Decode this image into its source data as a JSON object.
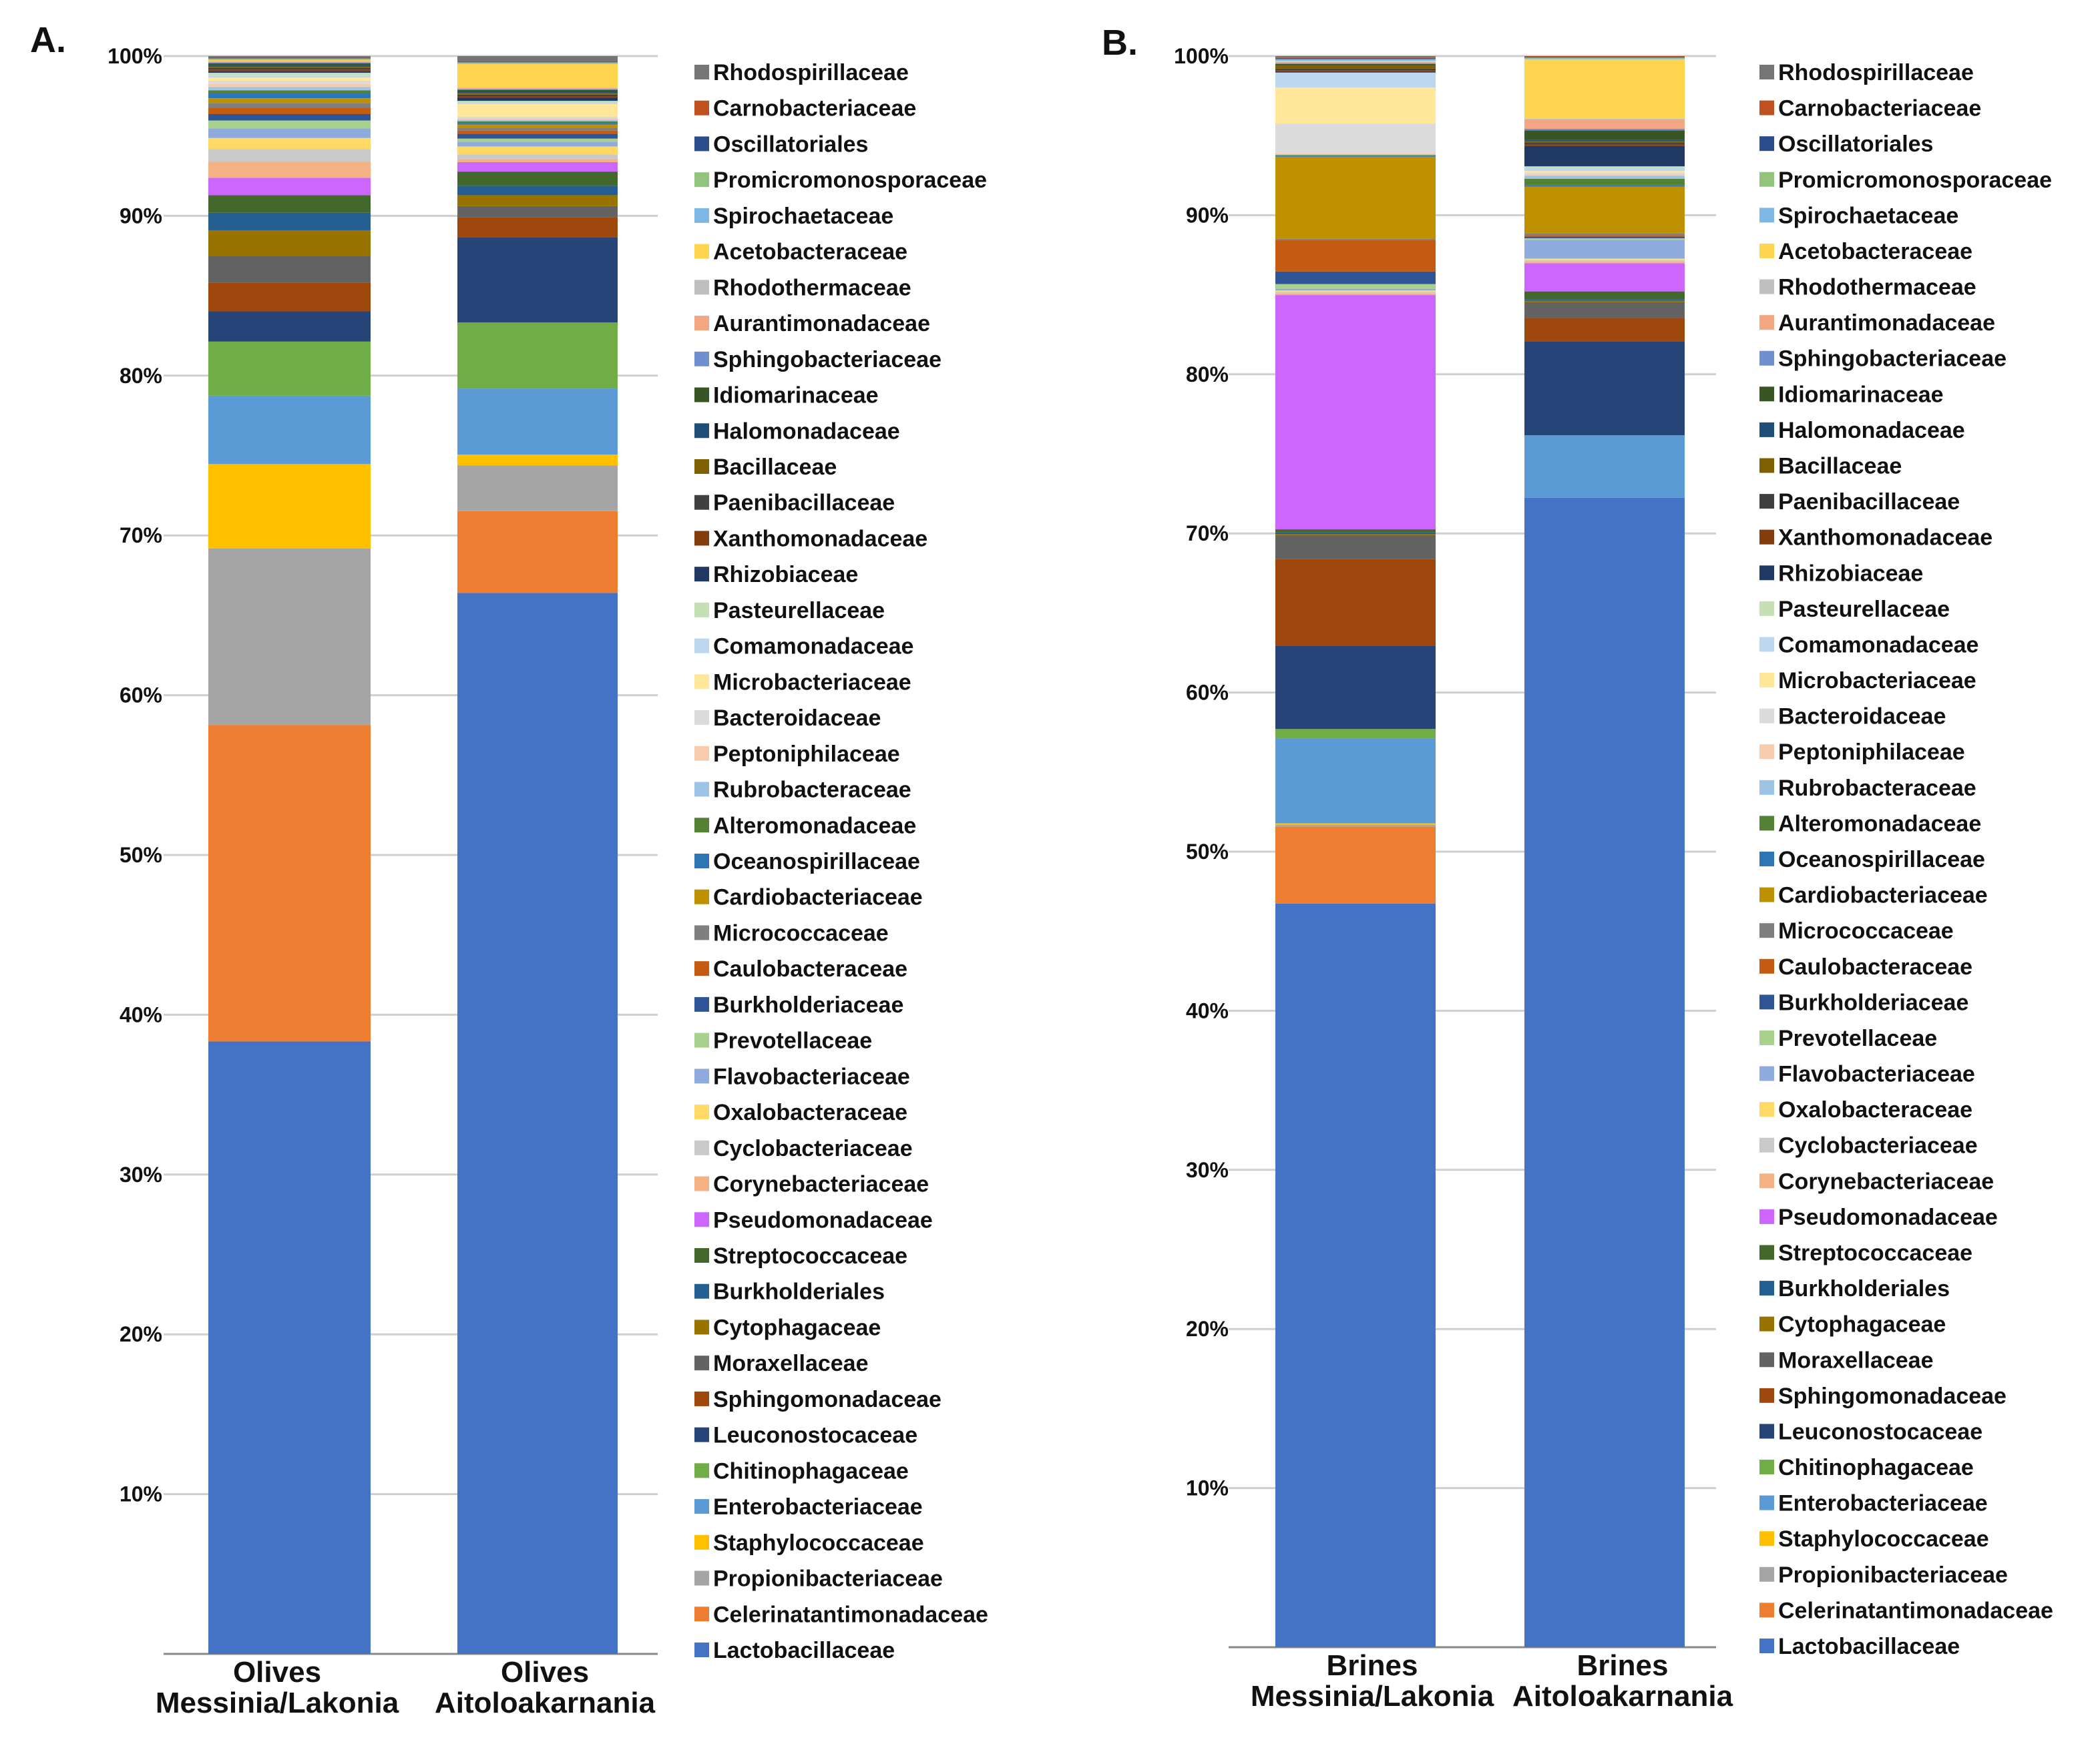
{
  "chart_data": [
    {
      "type": "bar",
      "stacked": true,
      "percent": true,
      "panel_label": "A.",
      "title": "",
      "xlabel": "",
      "ylabel": "",
      "ylim": [
        0,
        100
      ],
      "yticks": [
        "",
        "10%",
        "20%",
        "30%",
        "40%",
        "50%",
        "60%",
        "70%",
        "80%",
        "90%",
        "100%"
      ],
      "grid": true,
      "legend_position": "right",
      "categories": [
        [
          "Olives",
          "Messinia/Lakonia"
        ],
        [
          "Olives",
          "Aitoloakarnania"
        ]
      ],
      "series": [
        {
          "name": "Lactobacillaceae",
          "color": "#4472C4",
          "values": [
            38.5,
            67.5
          ]
        },
        {
          "name": "Celerinatantimonadaceae",
          "color": "#ED7D31",
          "values": [
            19.9,
            5.2
          ]
        },
        {
          "name": "Propionibacteriaceae",
          "color": "#A5A5A5",
          "values": [
            11.1,
            2.9
          ]
        },
        {
          "name": "Staphylococcaceae",
          "color": "#FFC000",
          "values": [
            5.3,
            0.7
          ]
        },
        {
          "name": "Enterobacteriaceae",
          "color": "#5B9BD5",
          "values": [
            4.3,
            4.2
          ]
        },
        {
          "name": "Chitinophagaceae",
          "color": "#70AD47",
          "values": [
            3.4,
            4.2
          ]
        },
        {
          "name": "Leuconostocaceae",
          "color": "#264478",
          "values": [
            1.9,
            5.4
          ]
        },
        {
          "name": "Sphingomonadaceae",
          "color": "#9E480E",
          "values": [
            1.8,
            1.3
          ]
        },
        {
          "name": "Moraxellaceae",
          "color": "#636363",
          "values": [
            1.7,
            0.7
          ]
        },
        {
          "name": "Cytophagaceae",
          "color": "#997300",
          "values": [
            1.6,
            0.7
          ]
        },
        {
          "name": "Burkholderiales",
          "color": "#255E91",
          "values": [
            1.1,
            0.6
          ]
        },
        {
          "name": "Streptococcaceae",
          "color": "#43682B",
          "values": [
            1.1,
            0.9
          ]
        },
        {
          "name": "Pseudomonadaceae",
          "color": "#CC66FF",
          "values": [
            1.1,
            0.6
          ]
        },
        {
          "name": "Corynebacteriaceae",
          "color": "#F4B183",
          "values": [
            1.0,
            0.2
          ]
        },
        {
          "name": "Cyclobacteriaceae",
          "color": "#C9C9C9",
          "values": [
            0.8,
            0.3
          ]
        },
        {
          "name": "Oxalobacteraceae",
          "color": "#FFD966",
          "values": [
            0.7,
            0.5
          ]
        },
        {
          "name": "Flavobacteriaceae",
          "color": "#8FAADC",
          "values": [
            0.6,
            0.3
          ]
        },
        {
          "name": "Prevotellaceae",
          "color": "#A9D18E",
          "values": [
            0.5,
            0.2
          ]
        },
        {
          "name": "Burkholderiaceae",
          "color": "#2F5597",
          "values": [
            0.4,
            0.3
          ]
        },
        {
          "name": "Caulobacteraceae",
          "color": "#C55A11",
          "values": [
            0.4,
            0.2
          ]
        },
        {
          "name": "Micrococcaceae",
          "color": "#7F7F7F",
          "values": [
            0.3,
            0.2
          ]
        },
        {
          "name": "Cardiobacteriaceae",
          "color": "#BF9000",
          "values": [
            0.3,
            0.2
          ]
        },
        {
          "name": "Oceanospirillaceae",
          "color": "#2E75B6",
          "values": [
            0.3,
            0.1
          ]
        },
        {
          "name": "Alteromonadaceae",
          "color": "#548235",
          "values": [
            0.2,
            0.1
          ]
        },
        {
          "name": "Rubrobacteraceae",
          "color": "#9DC3E6",
          "values": [
            0.2,
            0.1
          ]
        },
        {
          "name": "Peptoniphilaceae",
          "color": "#F8CBAD",
          "values": [
            0.2,
            0.1
          ]
        },
        {
          "name": "Bacteroidaceae",
          "color": "#DBDBDB",
          "values": [
            0.2,
            0.1
          ]
        },
        {
          "name": "Microbacteriaceae",
          "color": "#FFE699",
          "values": [
            0.2,
            0.8
          ]
        },
        {
          "name": "Comamonadaceae",
          "color": "#BDD7EE",
          "values": [
            0.15,
            0.1
          ]
        },
        {
          "name": "Pasteurellaceae",
          "color": "#C5E0B4",
          "values": [
            0.15,
            0.1
          ]
        },
        {
          "name": "Rhizobiaceae",
          "color": "#203864",
          "values": [
            0.1,
            0.2
          ]
        },
        {
          "name": "Xanthomonadaceae",
          "color": "#843C0C",
          "values": [
            0.1,
            0.1
          ]
        },
        {
          "name": "Paenibacillaceae",
          "color": "#404040",
          "values": [
            0.1,
            0.1
          ]
        },
        {
          "name": "Bacillaceae",
          "color": "#7F6000",
          "values": [
            0.1,
            0.1
          ]
        },
        {
          "name": "Halomonadaceae",
          "color": "#1F4E79",
          "values": [
            0.1,
            0.1
          ]
        },
        {
          "name": "Idiomarinaceae",
          "color": "#375623",
          "values": [
            0.1,
            0.1
          ]
        },
        {
          "name": "Sphingobacteriaceae",
          "color": "#6F8FD0",
          "values": [
            0.05,
            0.05
          ]
        },
        {
          "name": "Aurantimonadaceae",
          "color": "#F4A582",
          "values": [
            0.05,
            0.05
          ]
        },
        {
          "name": "Rhodothermaceae",
          "color": "#BFBFBF",
          "values": [
            0.05,
            0.05
          ]
        },
        {
          "name": "Acetobacteraceae",
          "color": "#FFD54F",
          "values": [
            0.05,
            1.5
          ]
        },
        {
          "name": "Spirochaetaceae",
          "color": "#7EB6E6",
          "values": [
            0.05,
            0.05
          ]
        },
        {
          "name": "Promicromonosporaceae",
          "color": "#93C47D",
          "values": [
            0.05,
            0.05
          ]
        },
        {
          "name": "Oscillatoriales",
          "color": "#2B4C8C",
          "values": [
            0.05,
            0.05
          ]
        },
        {
          "name": "Carnobacteriaceae",
          "color": "#C0501E",
          "values": [
            0.05,
            0.05
          ]
        },
        {
          "name": "Rhodospirillaceae",
          "color": "#757575",
          "values": [
            0.05,
            0.3
          ]
        }
      ]
    },
    {
      "type": "bar",
      "stacked": true,
      "percent": true,
      "panel_label": "B.",
      "title": "",
      "xlabel": "",
      "ylabel": "",
      "ylim": [
        0,
        100
      ],
      "yticks": [
        "",
        "10%",
        "20%",
        "30%",
        "40%",
        "50%",
        "60%",
        "70%",
        "80%",
        "90%",
        "100%"
      ],
      "grid": true,
      "legend_position": "right",
      "categories": [
        [
          "Brines",
          "Messinia/Lakonia"
        ],
        [
          "Brines",
          "Aitoloakarnania"
        ]
      ],
      "series": [
        {
          "name": "Lactobacillaceae",
          "color": "#4472C4",
          "values": [
            47.3,
            73.5
          ]
        },
        {
          "name": "Celerinatantimonadaceae",
          "color": "#ED7D31",
          "values": [
            4.9,
            0.0
          ]
        },
        {
          "name": "Propionibacteriaceae",
          "color": "#A5A5A5",
          "values": [
            0.1,
            0.0
          ]
        },
        {
          "name": "Staphylococcaceae",
          "color": "#FFC000",
          "values": [
            0.1,
            0.0
          ]
        },
        {
          "name": "Enterobacteriaceae",
          "color": "#5B9BD5",
          "values": [
            5.4,
            4.0
          ]
        },
        {
          "name": "Chitinophagaceae",
          "color": "#70AD47",
          "values": [
            0.6,
            0.0
          ]
        },
        {
          "name": "Leuconostocaceae",
          "color": "#264478",
          "values": [
            5.3,
            6.0
          ]
        },
        {
          "name": "Sphingomonadaceae",
          "color": "#9E480E",
          "values": [
            5.5,
            1.5
          ]
        },
        {
          "name": "Moraxellaceae",
          "color": "#636363",
          "values": [
            1.5,
            1.0
          ]
        },
        {
          "name": "Cytophagaceae",
          "color": "#997300",
          "values": [
            0.1,
            0.1
          ]
        },
        {
          "name": "Burkholderiales",
          "color": "#255E91",
          "values": [
            0.1,
            0.1
          ]
        },
        {
          "name": "Streptococcaceae",
          "color": "#43682B",
          "values": [
            0.2,
            0.5
          ]
        },
        {
          "name": "Pseudomonadaceae",
          "color": "#CC66FF",
          "values": [
            14.9,
            1.8
          ]
        },
        {
          "name": "Corynebacteriaceae",
          "color": "#F4B183",
          "values": [
            0.1,
            0.1
          ]
        },
        {
          "name": "Cyclobacteriaceae",
          "color": "#C9C9C9",
          "values": [
            0.1,
            0.1
          ]
        },
        {
          "name": "Oxalobacteraceae",
          "color": "#FFD966",
          "values": [
            0.1,
            0.1
          ]
        },
        {
          "name": "Flavobacteriaceae",
          "color": "#8FAADC",
          "values": [
            0.1,
            1.2
          ]
        },
        {
          "name": "Prevotellaceae",
          "color": "#A9D18E",
          "values": [
            0.3,
            0.1
          ]
        },
        {
          "name": "Burkholderiaceae",
          "color": "#2F5597",
          "values": [
            0.8,
            0.1
          ]
        },
        {
          "name": "Caulobacteraceae",
          "color": "#C55A11",
          "values": [
            2.0,
            0.1
          ]
        },
        {
          "name": "Micrococcaceae",
          "color": "#7F7F7F",
          "values": [
            0.1,
            0.1
          ]
        },
        {
          "name": "Cardiobacteriaceae",
          "color": "#BF9000",
          "values": [
            5.2,
            3.0
          ]
        },
        {
          "name": "Oceanospirillaceae",
          "color": "#2E75B6",
          "values": [
            0.05,
            0.1
          ]
        },
        {
          "name": "Alteromonadaceae",
          "color": "#548235",
          "values": [
            0.05,
            0.4
          ]
        },
        {
          "name": "Rubrobacteraceae",
          "color": "#9DC3E6",
          "values": [
            0.05,
            0.2
          ]
        },
        {
          "name": "Peptoniphilaceae",
          "color": "#F8CBAD",
          "values": [
            0.05,
            0.1
          ]
        },
        {
          "name": "Bacteroidaceae",
          "color": "#DBDBDB",
          "values": [
            1.9,
            0.1
          ]
        },
        {
          "name": "Microbacteriaceae",
          "color": "#FFE699",
          "values": [
            2.3,
            0.1
          ]
        },
        {
          "name": "Comamonadaceae",
          "color": "#BDD7EE",
          "values": [
            0.9,
            0.2
          ]
        },
        {
          "name": "Pasteurellaceae",
          "color": "#C5E0B4",
          "values": [
            0.05,
            0.1
          ]
        },
        {
          "name": "Rhizobiaceae",
          "color": "#203864",
          "values": [
            0.05,
            1.3
          ]
        },
        {
          "name": "Xanthomonadaceae",
          "color": "#843C0C",
          "values": [
            0.1,
            0.1
          ]
        },
        {
          "name": "Paenibacillaceae",
          "color": "#404040",
          "values": [
            0.1,
            0.1
          ]
        },
        {
          "name": "Bacillaceae",
          "color": "#7F6000",
          "values": [
            0.2,
            0.1
          ]
        },
        {
          "name": "Halomonadaceae",
          "color": "#1F4E79",
          "values": [
            0.05,
            0.1
          ]
        },
        {
          "name": "Idiomarinaceae",
          "color": "#375623",
          "values": [
            0.05,
            0.6
          ]
        },
        {
          "name": "Sphingobacteriaceae",
          "color": "#6F8FD0",
          "values": [
            0.05,
            0.1
          ]
        },
        {
          "name": "Aurantimonadaceae",
          "color": "#F4A582",
          "values": [
            0.05,
            0.6
          ]
        },
        {
          "name": "Rhodothermaceae",
          "color": "#BFBFBF",
          "values": [
            0.05,
            0.05
          ]
        },
        {
          "name": "Acetobacteraceae",
          "color": "#FFD54F",
          "values": [
            0.05,
            3.8
          ]
        },
        {
          "name": "Spirochaetaceae",
          "color": "#7EB6E6",
          "values": [
            0.05,
            0.05
          ]
        },
        {
          "name": "Promicromonosporaceae",
          "color": "#93C47D",
          "values": [
            0.05,
            0.05
          ]
        },
        {
          "name": "Oscillatoriales",
          "color": "#2B4C8C",
          "values": [
            0.05,
            0.05
          ]
        },
        {
          "name": "Carnobacteriaceae",
          "color": "#C0501E",
          "values": [
            0.05,
            0.05
          ]
        },
        {
          "name": "Rhodospirillaceae",
          "color": "#757575",
          "values": [
            0.1,
            0.0
          ]
        }
      ]
    }
  ]
}
